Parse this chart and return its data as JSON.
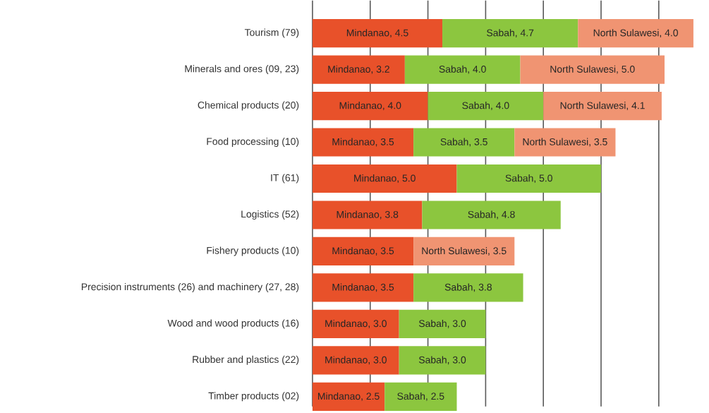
{
  "chart_data": {
    "type": "bar",
    "orientation": "horizontal",
    "stacked": true,
    "categories": [
      "Tourism (79)",
      "Minerals and ores (09, 23)",
      "Chemical products (20)",
      "Food processing (10)",
      "IT (61)",
      "Logistics (52)",
      "Fishery products (10)",
      "Precision instruments (26) and machinery (27, 28)",
      "Wood and wood products (16)",
      "Rubber and plastics (22)",
      "Timber products (02)"
    ],
    "series": [
      {
        "color": "#e8512a",
        "values": [
          4.5,
          3.2,
          4.0,
          3.5,
          5.0,
          3.8,
          3.5,
          3.5,
          3.0,
          3.0,
          2.5
        ],
        "value_labels": [
          "Mindanao, 4.5",
          "Mindanao, 3.2",
          "Mindanao, 4.0",
          "Mindanao, 3.5",
          "Mindanao, 5.0",
          "Mindanao, 3.8",
          "Mindanao, 3.5",
          "Mindanao, 3.5",
          "Mindanao, 3.0",
          "Mindanao, 3.0",
          "Mindanao, 2.5"
        ]
      },
      {
        "color": "#8cc63f",
        "values": [
          4.7,
          4.0,
          4.0,
          3.5,
          5.0,
          4.8,
          null,
          3.8,
          3.0,
          3.0,
          2.5
        ],
        "value_labels": [
          "Sabah, 4.7",
          "Sabah, 4.0",
          "Sabah, 4.0",
          "Sabah, 3.5",
          "Sabah, 5.0",
          "Sabah, 4.8",
          null,
          "Sabah, 3.8",
          "Sabah, 3.0",
          "Sabah, 3.0",
          "Sabah, 2.5"
        ]
      },
      {
        "color": "#f09472",
        "values": [
          4.0,
          5.0,
          4.1,
          3.5,
          null,
          null,
          3.5,
          null,
          null,
          null,
          null
        ],
        "value_labels": [
          "North Sulawesi, 4.0",
          "North Sulawesi, 5.0",
          "North Sulawesi, 4.1",
          "North Sulawesi, 3.5",
          null,
          null,
          "North Sulawesi, 3.5",
          null,
          null,
          null,
          null
        ]
      }
    ],
    "xticks": [
      {
        "value": 0,
        "label": null
      },
      {
        "value": 2,
        "label": null
      },
      {
        "value": 4,
        "label": null
      },
      {
        "value": 6,
        "label": null
      },
      {
        "value": 8,
        "label": null
      },
      {
        "value": 10,
        "label": null
      },
      {
        "value": 12,
        "label": null
      }
    ],
    "grid": "x",
    "tick_labels": "y"
  }
}
